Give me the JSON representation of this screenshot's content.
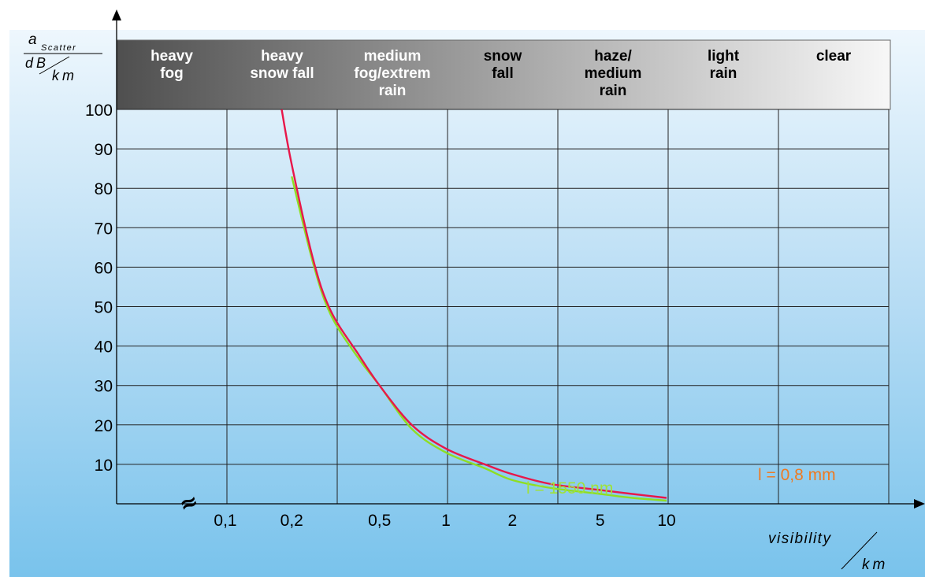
{
  "chart_data": {
    "type": "line",
    "title": "",
    "x_scale": "log",
    "grid": true,
    "y_unit_label": {
      "symbol": "a",
      "subscript": "Scatter",
      "unit_numerator": "dB",
      "unit_denominator": "km"
    },
    "x_unit_label": {
      "quantity": "visibility",
      "unit": "km"
    },
    "x_ticks": [
      {
        "value": 0.1,
        "label": "0,1"
      },
      {
        "value": 0.2,
        "label": "0,2"
      },
      {
        "value": 0.5,
        "label": "0,5"
      },
      {
        "value": 1,
        "label": "1"
      },
      {
        "value": 2,
        "label": "2"
      },
      {
        "value": 5,
        "label": "5"
      },
      {
        "value": 10,
        "label": "10"
      }
    ],
    "y_ticks": [
      10,
      20,
      30,
      40,
      50,
      60,
      70,
      80,
      90,
      100
    ],
    "ylim": [
      0,
      100
    ],
    "axis_break_symbol": "≈",
    "weather_conditions": [
      {
        "label": "heavy\nfog",
        "color": "#555555"
      },
      {
        "label": "heavy\nsnow fall",
        "color": "#707070"
      },
      {
        "label": "medium\nfog/extrem\nrain",
        "color": "#8c8c8c"
      },
      {
        "label": "snow\nfall",
        "color": "#aaaaaa"
      },
      {
        "label": "haze/\nmedium\nrain",
        "color": "#c4c4c4"
      },
      {
        "label": "light\nrain",
        "color": "#dcdcdc"
      },
      {
        "label": "clear",
        "color": "#efefef"
      }
    ],
    "series": [
      {
        "name": "l = 0,8 mm",
        "color": "#e8174a",
        "label_color": "#ee7a22",
        "x": [
          0.18,
          0.2,
          0.25,
          0.3,
          0.4,
          0.5,
          0.7,
          1,
          1.5,
          2,
          3,
          5,
          7,
          10
        ],
        "y": [
          100,
          86,
          62,
          49,
          38,
          30,
          20,
          14,
          10,
          7.5,
          5,
          3.5,
          2.5,
          1.5
        ]
      },
      {
        "name": "l = 1550 nm",
        "color": "#8ede23",
        "label_color": "#9fe23a",
        "x": [
          0.2,
          0.25,
          0.3,
          0.4,
          0.5,
          0.7,
          1,
          1.5,
          2,
          3,
          5,
          7,
          10
        ],
        "y": [
          83,
          61,
          48,
          37,
          30,
          19,
          13,
          9,
          6,
          4,
          2.5,
          1.5,
          0.8
        ]
      }
    ]
  }
}
